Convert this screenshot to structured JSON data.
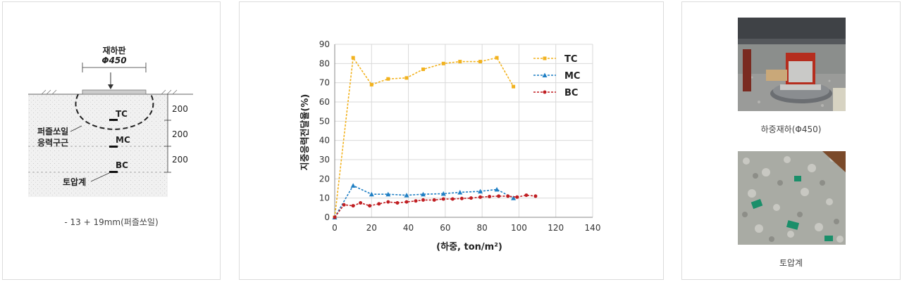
{
  "left_panel": {
    "diagram": {
      "plate_label": "재하판",
      "plate_size": "Φ450",
      "sensor_tc": "TC",
      "sensor_mc": "MC",
      "sensor_bc": "BC",
      "zone_label_line1": "퍼즐쏘일",
      "zone_label_line2": "응력구근",
      "gauge_label": "토압계",
      "dim_1": "200",
      "dim_2": "200",
      "dim_3": "200"
    },
    "caption": "- 13 + 19mm(퍼즐쏘일)"
  },
  "chart_data": {
    "type": "line",
    "title": "",
    "xlabel": "(하중, ton/m²)",
    "ylabel": "지중응력전달율(%)",
    "xlim": [
      0,
      140
    ],
    "ylim": [
      0,
      90
    ],
    "xticks": [
      0,
      20,
      40,
      60,
      80,
      100,
      120,
      140
    ],
    "yticks": [
      0,
      10,
      20,
      30,
      40,
      50,
      60,
      70,
      80,
      90
    ],
    "grid": true,
    "legend_position": "top-right",
    "series": [
      {
        "name": "TC",
        "color": "#f2b21e",
        "marker": "square",
        "points": [
          [
            0,
            0
          ],
          [
            10,
            83
          ],
          [
            20,
            69
          ],
          [
            29,
            72
          ],
          [
            39,
            72.5
          ],
          [
            48,
            77
          ],
          [
            59,
            80
          ],
          [
            68,
            81
          ],
          [
            79,
            81
          ],
          [
            88,
            83
          ],
          [
            97,
            68
          ]
        ]
      },
      {
        "name": "MC",
        "color": "#1f7fc4",
        "marker": "triangle",
        "points": [
          [
            0,
            0
          ],
          [
            10,
            16.5
          ],
          [
            20,
            12
          ],
          [
            29,
            12
          ],
          [
            39,
            11.5
          ],
          [
            48,
            12
          ],
          [
            59,
            12.3
          ],
          [
            68,
            13
          ],
          [
            79,
            13.5
          ],
          [
            88,
            14.5
          ],
          [
            97,
            10
          ]
        ]
      },
      {
        "name": "BC",
        "color": "#c01e22",
        "marker": "circle",
        "points": [
          [
            0,
            0
          ],
          [
            5,
            6.5
          ],
          [
            10,
            6
          ],
          [
            14,
            7.5
          ],
          [
            19,
            6
          ],
          [
            24,
            7
          ],
          [
            29,
            8
          ],
          [
            34,
            7.5
          ],
          [
            39,
            8
          ],
          [
            44,
            8.5
          ],
          [
            48,
            9
          ],
          [
            54,
            9
          ],
          [
            59,
            9.5
          ],
          [
            64,
            9.5
          ],
          [
            69,
            9.8
          ],
          [
            74,
            10
          ],
          [
            79,
            10.5
          ],
          [
            84,
            10.8
          ],
          [
            89,
            11
          ],
          [
            94,
            11
          ],
          [
            99,
            10.5
          ],
          [
            104,
            11.5
          ],
          [
            109,
            11
          ]
        ]
      }
    ]
  },
  "right_panel": {
    "photo_1_caption": "하중재하(Φ450)",
    "photo_2_caption": "토압계"
  }
}
